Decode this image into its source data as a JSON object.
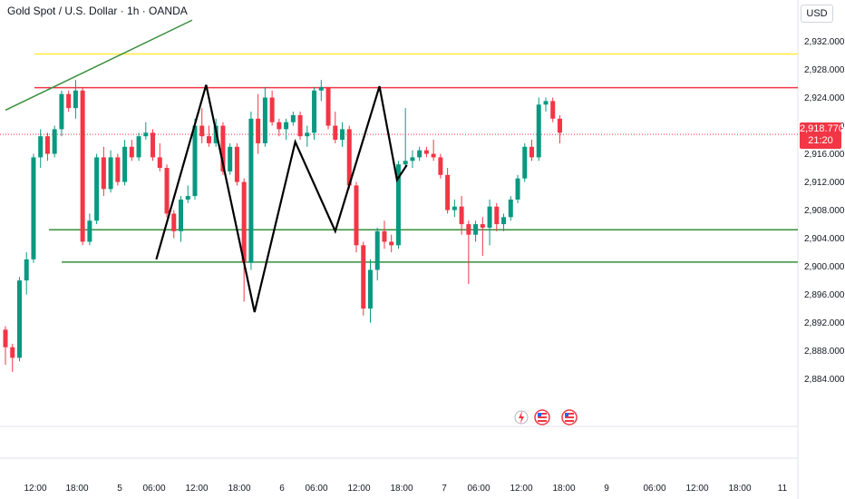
{
  "header": {
    "title": "Gold Spot / U.S. Dollar · 1h · OANDA",
    "currency": "USD"
  },
  "last_price": {
    "price": "2,918.770",
    "countdown": "21:20"
  },
  "colors": {
    "bull": "#089981",
    "bear": "#f23645",
    "resistance": "#f23645",
    "support": "#388e3c",
    "top_line": "#ffeb3b",
    "trend": "#388e3c",
    "pattern": "#000000"
  },
  "events": [
    {
      "icon": "lightning-icon"
    },
    {
      "icon": "us-flag-icon"
    },
    {
      "icon": "us-flag-icon"
    }
  ],
  "chart_data": {
    "type": "candlestick",
    "x_ticks": [
      "12:00",
      "18:00",
      "5",
      "06:00",
      "12:00",
      "18:00",
      "6",
      "06:00",
      "12:00",
      "18:00",
      "7",
      "06:00",
      "12:00",
      "18:00",
      "9",
      "06:00",
      "12:00",
      "18:00",
      "11"
    ],
    "y_ticks": [
      "2,932.000",
      "2,928.000",
      "2,924.000",
      "2,920.000",
      "2,916.000",
      "2,912.000",
      "2,908.000",
      "2,904.000",
      "2,900.000",
      "2,896.000",
      "2,892.000",
      "2,888.000",
      "2,884.000"
    ],
    "ylim": [
      2881.5,
      2934.0
    ],
    "candles": [
      [
        2891.0,
        2891.5,
        2886.0,
        2888.5
      ],
      [
        2888.5,
        2889.0,
        2885.0,
        2887.0
      ],
      [
        2887.0,
        2898.5,
        2886.5,
        2898.0
      ],
      [
        2898.0,
        2902.0,
        2896.0,
        2901.0
      ],
      [
        2901.0,
        2916.0,
        2900.5,
        2915.5
      ],
      [
        2915.5,
        2919.5,
        2914.0,
        2918.5
      ],
      [
        2918.5,
        2919.0,
        2915.0,
        2916.0
      ],
      [
        2916.0,
        2920.0,
        2915.5,
        2919.5
      ],
      [
        2919.5,
        2925.0,
        2918.5,
        2924.5
      ],
      [
        2924.5,
        2925.0,
        2922.0,
        2922.5
      ],
      [
        2922.5,
        2926.5,
        2921.0,
        2925.0
      ],
      [
        2925.0,
        2925.5,
        2903.0,
        2903.5
      ],
      [
        2903.5,
        2907.5,
        2903.0,
        2906.5
      ],
      [
        2906.5,
        2916.0,
        2906.0,
        2915.5
      ],
      [
        2915.5,
        2917.0,
        2910.0,
        2911.0
      ],
      [
        2911.0,
        2916.5,
        2910.5,
        2915.5
      ],
      [
        2915.5,
        2916.0,
        2911.5,
        2912.0
      ],
      [
        2912.0,
        2918.0,
        2911.5,
        2917.0
      ],
      [
        2917.0,
        2918.0,
        2915.0,
        2915.5
      ],
      [
        2915.5,
        2919.0,
        2915.0,
        2918.5
      ],
      [
        2918.5,
        2920.5,
        2918.0,
        2919.0
      ],
      [
        2919.0,
        2919.5,
        2915.0,
        2915.5
      ],
      [
        2915.5,
        2917.5,
        2913.5,
        2914.0
      ],
      [
        2914.0,
        2914.5,
        2907.0,
        2907.5
      ],
      [
        2907.5,
        2908.0,
        2904.0,
        2905.0
      ],
      [
        2905.0,
        2910.0,
        2903.5,
        2909.5
      ],
      [
        2909.5,
        2911.5,
        2909.0,
        2910.0
      ],
      [
        2910.0,
        2921.0,
        2909.5,
        2920.0
      ],
      [
        2920.0,
        2922.5,
        2917.5,
        2918.5
      ],
      [
        2918.5,
        2920.0,
        2917.0,
        2917.5
      ],
      [
        2917.5,
        2921.0,
        2917.0,
        2920.0
      ],
      [
        2920.0,
        2920.5,
        2913.0,
        2913.5
      ],
      [
        2913.5,
        2917.5,
        2913.0,
        2917.0
      ],
      [
        2917.0,
        2917.5,
        2911.5,
        2912.0
      ],
      [
        2912.0,
        2912.5,
        2895.0,
        2900.5
      ],
      [
        2900.5,
        2922.0,
        2899.5,
        2921.0
      ],
      [
        2921.0,
        2924.5,
        2916.0,
        2917.5
      ],
      [
        2917.5,
        2925.5,
        2917.0,
        2924.0
      ],
      [
        2924.0,
        2925.0,
        2920.0,
        2920.5
      ],
      [
        2920.5,
        2921.0,
        2918.5,
        2919.5
      ],
      [
        2919.5,
        2921.0,
        2918.0,
        2920.5
      ],
      [
        2920.5,
        2922.0,
        2920.0,
        2921.5
      ],
      [
        2921.5,
        2922.0,
        2918.0,
        2918.5
      ],
      [
        2918.5,
        2920.0,
        2917.0,
        2919.0
      ],
      [
        2919.0,
        2925.5,
        2918.0,
        2925.0
      ],
      [
        2925.0,
        2926.5,
        2923.5,
        2925.5
      ],
      [
        2925.5,
        2925.5,
        2919.5,
        2920.0
      ],
      [
        2920.0,
        2922.0,
        2917.5,
        2918.0
      ],
      [
        2918.0,
        2920.5,
        2917.0,
        2919.5
      ],
      [
        2919.5,
        2920.0,
        2911.0,
        2911.5
      ],
      [
        2911.5,
        2912.0,
        2902.0,
        2903.0
      ],
      [
        2903.0,
        2903.5,
        2893.0,
        2894.0
      ],
      [
        2894.0,
        2901.0,
        2892.0,
        2899.5
      ],
      [
        2899.5,
        2905.5,
        2898.0,
        2905.0
      ],
      [
        2905.0,
        2906.5,
        2902.5,
        2903.5
      ],
      [
        2903.5,
        2904.5,
        2902.0,
        2903.0
      ],
      [
        2903.0,
        2915.0,
        2902.5,
        2914.5
      ],
      [
        2914.5,
        2922.5,
        2914.0,
        2915.0
      ],
      [
        2915.0,
        2916.5,
        2914.0,
        2915.5
      ],
      [
        2915.5,
        2917.0,
        2915.0,
        2916.5
      ],
      [
        2916.5,
        2917.0,
        2915.5,
        2916.0
      ],
      [
        2916.0,
        2918.0,
        2915.0,
        2915.5
      ],
      [
        2915.5,
        2916.0,
        2912.5,
        2913.0
      ],
      [
        2913.0,
        2914.0,
        2907.5,
        2908.0
      ],
      [
        2908.0,
        2909.5,
        2907.0,
        2908.5
      ],
      [
        2908.5,
        2910.0,
        2904.5,
        2906.0
      ],
      [
        2906.0,
        2906.5,
        2897.5,
        2904.5
      ],
      [
        2904.5,
        2906.5,
        2903.5,
        2906.0
      ],
      [
        2906.0,
        2907.0,
        2901.5,
        2905.5
      ],
      [
        2905.5,
        2909.5,
        2903.0,
        2908.5
      ],
      [
        2908.5,
        2909.0,
        2905.0,
        2906.0
      ],
      [
        2906.0,
        2907.5,
        2905.0,
        2907.0
      ],
      [
        2907.0,
        2910.0,
        2906.5,
        2909.5
      ],
      [
        2909.5,
        2913.0,
        2909.0,
        2912.5
      ],
      [
        2912.5,
        2917.5,
        2912.0,
        2917.0
      ],
      [
        2917.0,
        2918.0,
        2915.0,
        2915.5
      ],
      [
        2915.5,
        2924.0,
        2915.0,
        2923.0
      ],
      [
        2923.0,
        2924.0,
        2922.0,
        2923.5
      ],
      [
        2923.5,
        2924.0,
        2920.5,
        2921.0
      ],
      [
        2921.0,
        2921.5,
        2917.5,
        2919.0
      ]
    ],
    "horizontal_lines": [
      {
        "price": 2930.2,
        "color": "top_line"
      },
      {
        "price": 2925.4,
        "color": "resistance"
      },
      {
        "price": 2905.2,
        "color": "support"
      },
      {
        "price": 2900.6,
        "color": "support"
      }
    ],
    "trend_line": {
      "from": [
        0,
        2922.2
      ],
      "to": [
        26.6,
        2935.0
      ]
    },
    "pattern_path": [
      [
        21.5,
        2901.0
      ],
      [
        28.6,
        2925.8
      ],
      [
        35.5,
        2893.5
      ],
      [
        41.3,
        2917.7
      ],
      [
        47.0,
        2905.0
      ],
      [
        53.3,
        2925.6
      ],
      [
        55.8,
        2912.3
      ],
      [
        57.2,
        2914.4
      ]
    ],
    "price_line": 2918.77,
    "candle_spacing_slots": 99
  }
}
